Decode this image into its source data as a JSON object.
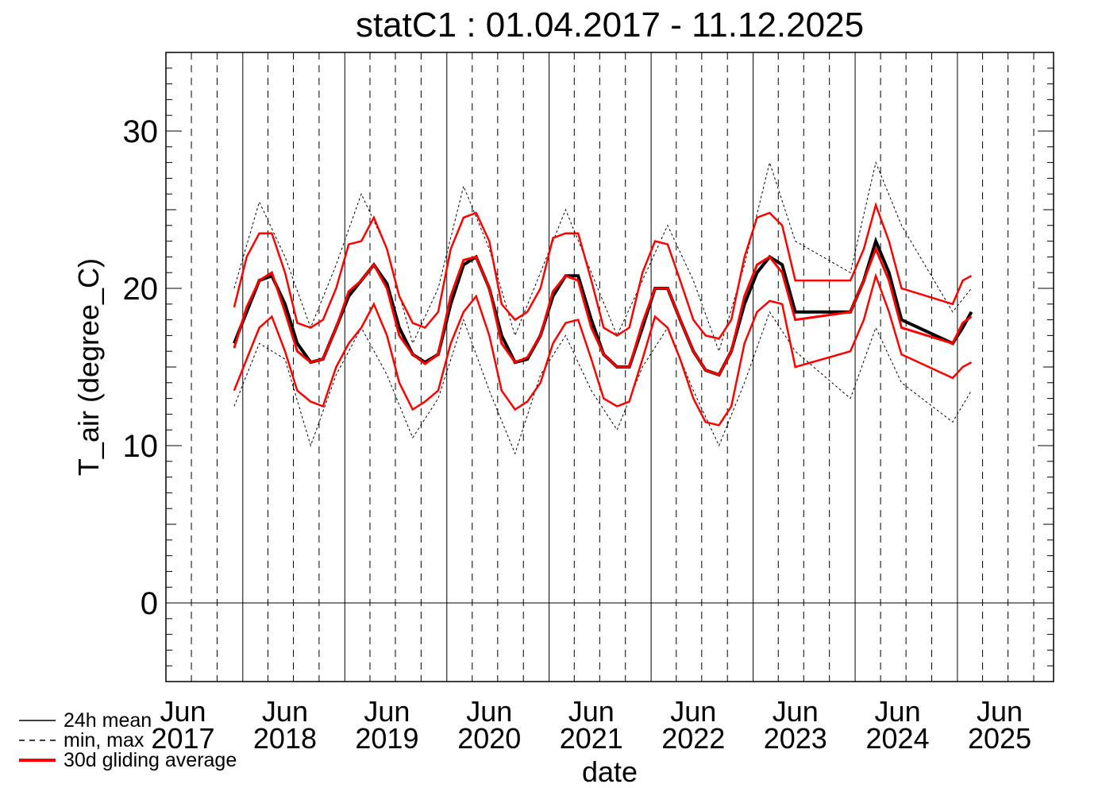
{
  "chart_data": {
    "type": "line",
    "title": "statC1 : 01.04.2017 - 11.12.2025",
    "xlabel": "date",
    "ylabel": "T_air (degree_C)",
    "ylim": [
      -5,
      35
    ],
    "yticks": [
      0,
      10,
      20,
      30
    ],
    "xlim": [
      "2017-04-01",
      "2025-12-11"
    ],
    "xtick_labels": [
      {
        "month": "Jun",
        "year": "2017",
        "date": "2017-06-01"
      },
      {
        "month": "Jun",
        "year": "2018",
        "date": "2018-06-01"
      },
      {
        "month": "Jun",
        "year": "2019",
        "date": "2019-06-01"
      },
      {
        "month": "Jun",
        "year": "2020",
        "date": "2020-06-01"
      },
      {
        "month": "Jun",
        "year": "2021",
        "date": "2021-06-01"
      },
      {
        "month": "Jun",
        "year": "2022",
        "date": "2022-06-01"
      },
      {
        "month": "Jun",
        "year": "2023",
        "date": "2023-06-01"
      },
      {
        "month": "Jun",
        "year": "2024",
        "date": "2024-06-01"
      },
      {
        "month": "Jun",
        "year": "2025",
        "date": "2025-06-01"
      }
    ],
    "grid": "vertical lines at year starts (solid) and quarter months (dashed)",
    "legend_position": "bottom-left",
    "series": [
      {
        "name": "24h mean",
        "color": "#000000",
        "style": "solid",
        "x": [
          "2017-12-01",
          "2018-01-15",
          "2018-03-01",
          "2018-04-15",
          "2018-06-01",
          "2018-07-15",
          "2018-09-01",
          "2018-10-15",
          "2018-12-01",
          "2019-01-15",
          "2019-03-01",
          "2019-04-15",
          "2019-06-01",
          "2019-07-15",
          "2019-09-01",
          "2019-10-15",
          "2019-12-01",
          "2020-01-15",
          "2020-03-01",
          "2020-04-15",
          "2020-06-01",
          "2020-07-15",
          "2020-09-01",
          "2020-10-15",
          "2020-12-01",
          "2021-01-15",
          "2021-03-01",
          "2021-04-15",
          "2021-06-01",
          "2021-07-15",
          "2021-09-01",
          "2021-10-15",
          "2021-12-01",
          "2022-01-15",
          "2022-03-01",
          "2022-04-15",
          "2022-06-01",
          "2022-07-15",
          "2022-09-01",
          "2022-10-15",
          "2022-12-01",
          "2023-01-15",
          "2023-03-01",
          "2023-04-15",
          "2023-06-01",
          "2023-12-15",
          "2024-02-01",
          "2024-03-15",
          "2024-05-01",
          "2024-06-15",
          "2024-12-15",
          "2025-01-20",
          "2025-02-20"
        ],
        "y": [
          16.5,
          18.5,
          20.5,
          20.8,
          19.0,
          16.5,
          15.3,
          15.5,
          17.5,
          19.5,
          20.5,
          21.5,
          20.3,
          17.5,
          15.8,
          15.3,
          15.8,
          19.0,
          21.5,
          22.0,
          20.0,
          17.0,
          15.3,
          15.5,
          17.0,
          19.5,
          20.8,
          20.8,
          18.0,
          15.8,
          15.0,
          15.0,
          17.5,
          20.0,
          20.0,
          18.0,
          16.0,
          14.8,
          14.5,
          16.0,
          19.0,
          21.0,
          22.0,
          21.5,
          18.5,
          18.5,
          20.5,
          23.0,
          21.0,
          18.0,
          16.5,
          17.5,
          18.5
        ]
      },
      {
        "name": "min, max",
        "color": "#000000",
        "style": "dashed",
        "x": [
          "2017-12-01",
          "2018-03-01",
          "2018-06-01",
          "2018-09-01",
          "2018-12-01",
          "2019-03-01",
          "2019-06-01",
          "2019-09-01",
          "2019-12-01",
          "2020-03-01",
          "2020-06-01",
          "2020-09-01",
          "2020-12-01",
          "2021-03-01",
          "2021-06-01",
          "2021-09-01",
          "2021-12-01",
          "2022-03-01",
          "2022-06-01",
          "2022-09-01",
          "2022-12-01",
          "2023-03-01",
          "2023-06-01",
          "2023-12-15",
          "2024-03-15",
          "2024-06-15",
          "2024-12-15",
          "2025-02-20"
        ],
        "y_max": [
          20.0,
          25.5,
          22.0,
          17.5,
          21.5,
          26.0,
          22.5,
          16.5,
          20.0,
          26.5,
          22.5,
          17.0,
          21.0,
          25.0,
          21.0,
          17.0,
          20.5,
          24.0,
          20.5,
          16.0,
          21.5,
          28.0,
          23.0,
          21.0,
          28.0,
          24.0,
          18.5,
          20.0
        ],
        "y_min": [
          12.5,
          16.5,
          15.5,
          10.0,
          14.5,
          17.5,
          14.5,
          10.5,
          13.0,
          18.0,
          13.5,
          9.5,
          14.5,
          17.0,
          13.5,
          11.0,
          15.0,
          17.5,
          13.5,
          10.0,
          14.0,
          18.5,
          16.0,
          13.0,
          17.5,
          14.0,
          11.5,
          13.5
        ]
      },
      {
        "name": "30d gliding average",
        "color": "#ff0000",
        "style": "solid",
        "x": [
          "2017-12-01",
          "2018-01-15",
          "2018-03-01",
          "2018-04-15",
          "2018-06-01",
          "2018-07-15",
          "2018-09-01",
          "2018-10-15",
          "2018-12-01",
          "2019-01-15",
          "2019-03-01",
          "2019-04-15",
          "2019-06-01",
          "2019-07-15",
          "2019-09-01",
          "2019-10-15",
          "2019-12-01",
          "2020-01-15",
          "2020-03-01",
          "2020-04-15",
          "2020-06-01",
          "2020-07-15",
          "2020-09-01",
          "2020-10-15",
          "2020-12-01",
          "2021-01-15",
          "2021-03-01",
          "2021-04-15",
          "2021-06-01",
          "2021-07-15",
          "2021-09-01",
          "2021-10-15",
          "2021-12-01",
          "2022-01-15",
          "2022-03-01",
          "2022-04-15",
          "2022-06-01",
          "2022-07-15",
          "2022-09-01",
          "2022-10-15",
          "2022-12-01",
          "2023-01-15",
          "2023-03-01",
          "2023-04-15",
          "2023-06-01",
          "2023-12-15",
          "2024-02-01",
          "2024-03-15",
          "2024-05-01",
          "2024-06-15",
          "2024-12-15",
          "2025-01-20",
          "2025-02-20"
        ],
        "y_mean": [
          16.2,
          18.8,
          20.5,
          21.0,
          18.5,
          16.0,
          15.3,
          15.5,
          17.5,
          19.8,
          20.5,
          21.5,
          20.0,
          17.0,
          15.8,
          15.2,
          15.8,
          19.5,
          21.8,
          22.0,
          20.0,
          16.5,
          15.3,
          15.6,
          17.0,
          19.8,
          20.8,
          20.5,
          17.5,
          15.8,
          15.0,
          15.0,
          17.8,
          20.0,
          20.0,
          18.0,
          16.0,
          14.8,
          14.5,
          16.0,
          19.5,
          21.5,
          22.0,
          21.0,
          18.0,
          18.5,
          20.5,
          22.5,
          20.5,
          17.5,
          16.5,
          17.8,
          18.2
        ],
        "y_max": [
          18.8,
          22.0,
          23.5,
          23.5,
          21.0,
          17.8,
          17.5,
          18.0,
          20.0,
          22.8,
          23.0,
          24.5,
          22.5,
          19.5,
          17.8,
          17.5,
          18.5,
          22.5,
          24.5,
          24.8,
          23.0,
          19.0,
          18.0,
          18.5,
          20.0,
          23.2,
          23.5,
          23.5,
          20.5,
          17.5,
          17.0,
          17.5,
          21.0,
          23.0,
          22.8,
          20.5,
          18.0,
          17.0,
          16.8,
          18.0,
          22.0,
          24.5,
          24.8,
          24.0,
          20.5,
          20.5,
          22.5,
          25.3,
          23.0,
          20.0,
          19.0,
          20.5,
          20.8
        ],
        "y_min": [
          13.5,
          15.5,
          17.5,
          18.2,
          16.0,
          13.5,
          12.8,
          12.5,
          15.0,
          16.5,
          17.5,
          19.0,
          17.0,
          14.0,
          12.3,
          12.8,
          13.5,
          16.5,
          18.5,
          19.5,
          17.0,
          13.5,
          12.3,
          12.8,
          14.0,
          16.5,
          17.8,
          18.0,
          15.5,
          13.0,
          12.5,
          12.8,
          15.5,
          18.2,
          17.5,
          15.5,
          13.0,
          11.5,
          11.3,
          12.5,
          16.5,
          18.5,
          19.2,
          19.0,
          15.0,
          16.0,
          18.0,
          20.8,
          18.5,
          15.8,
          14.3,
          15.0,
          15.3
        ]
      }
    ]
  }
}
